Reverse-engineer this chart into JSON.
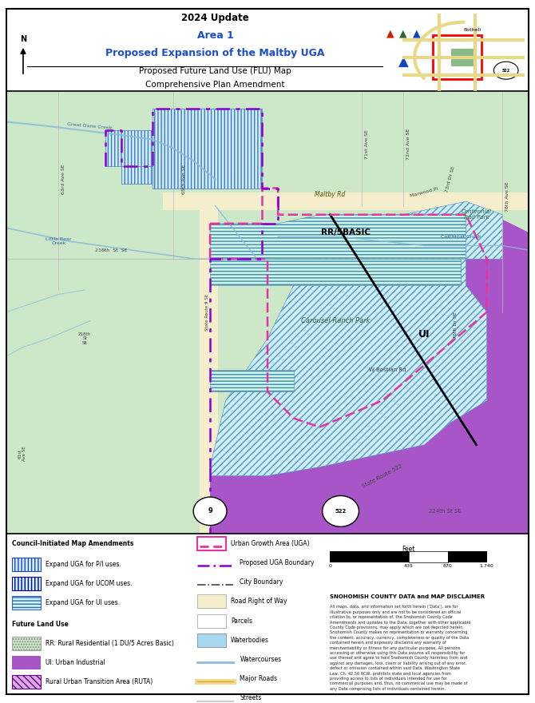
{
  "title_line1": "2024 Update",
  "title_line2": "Area 1",
  "title_line3": "Proposed Expansion of the Maltby UGA",
  "subtitle_line1": "Proposed Future Land Use (FLU) Map",
  "subtitle_line2": "Comprehensive Plan Amendment",
  "bg_green": "#cce8c8",
  "bg_green_light": "#d8edd4",
  "road_row_color": "#f5eecc",
  "purple_color": "#a855c8",
  "hatch_fill_color": "#cceeff",
  "hatch_fill_color2": "#ccf5e8",
  "waterbody_color": "#a8d8f0",
  "watercourse_color": "#88bbdd",
  "uga_line_color": "#e832a0",
  "proposed_uga_color": "#8800cc",
  "city_boundary_color": "#444444",
  "road_major_color": "#f0d888",
  "scale_values": [
    "0",
    "435",
    "870",
    "1,740"
  ],
  "disclaimer_title": "SNOHOMISH COUNTY DATA and MAP DISCLAIMER",
  "disclaimer_body": "All maps, data, and information set forth herein (‘Data’), are for illustrative purposes only and are not to be considered an official citation to, or representation of, the Snohomish County Code Amendments and updates to the Data, together with other applicable County Code provisions, may apply which are not depicted herein. Snohomish County makes no representation or warranty concerning the content, accuracy, currency, completeness or quality of the Data contained herein and expressly disclaims any warranty of merchantability or fitness for any particular purpose. All persons accessing or otherwise using this Data assume all responsibility for use thereof and agree to hold Snohomish County harmless from and against any damages, loss, claim or liability arising out of any error, defect or omission contained within said Data. Washington State Law, Ch. 42.56 RCW, prohibits state and local agencies from providing access to lists of individuals intended for use for commercial purposes and, thus, no commercial use may be made of any Data comprising lists of individuals contained herein."
}
